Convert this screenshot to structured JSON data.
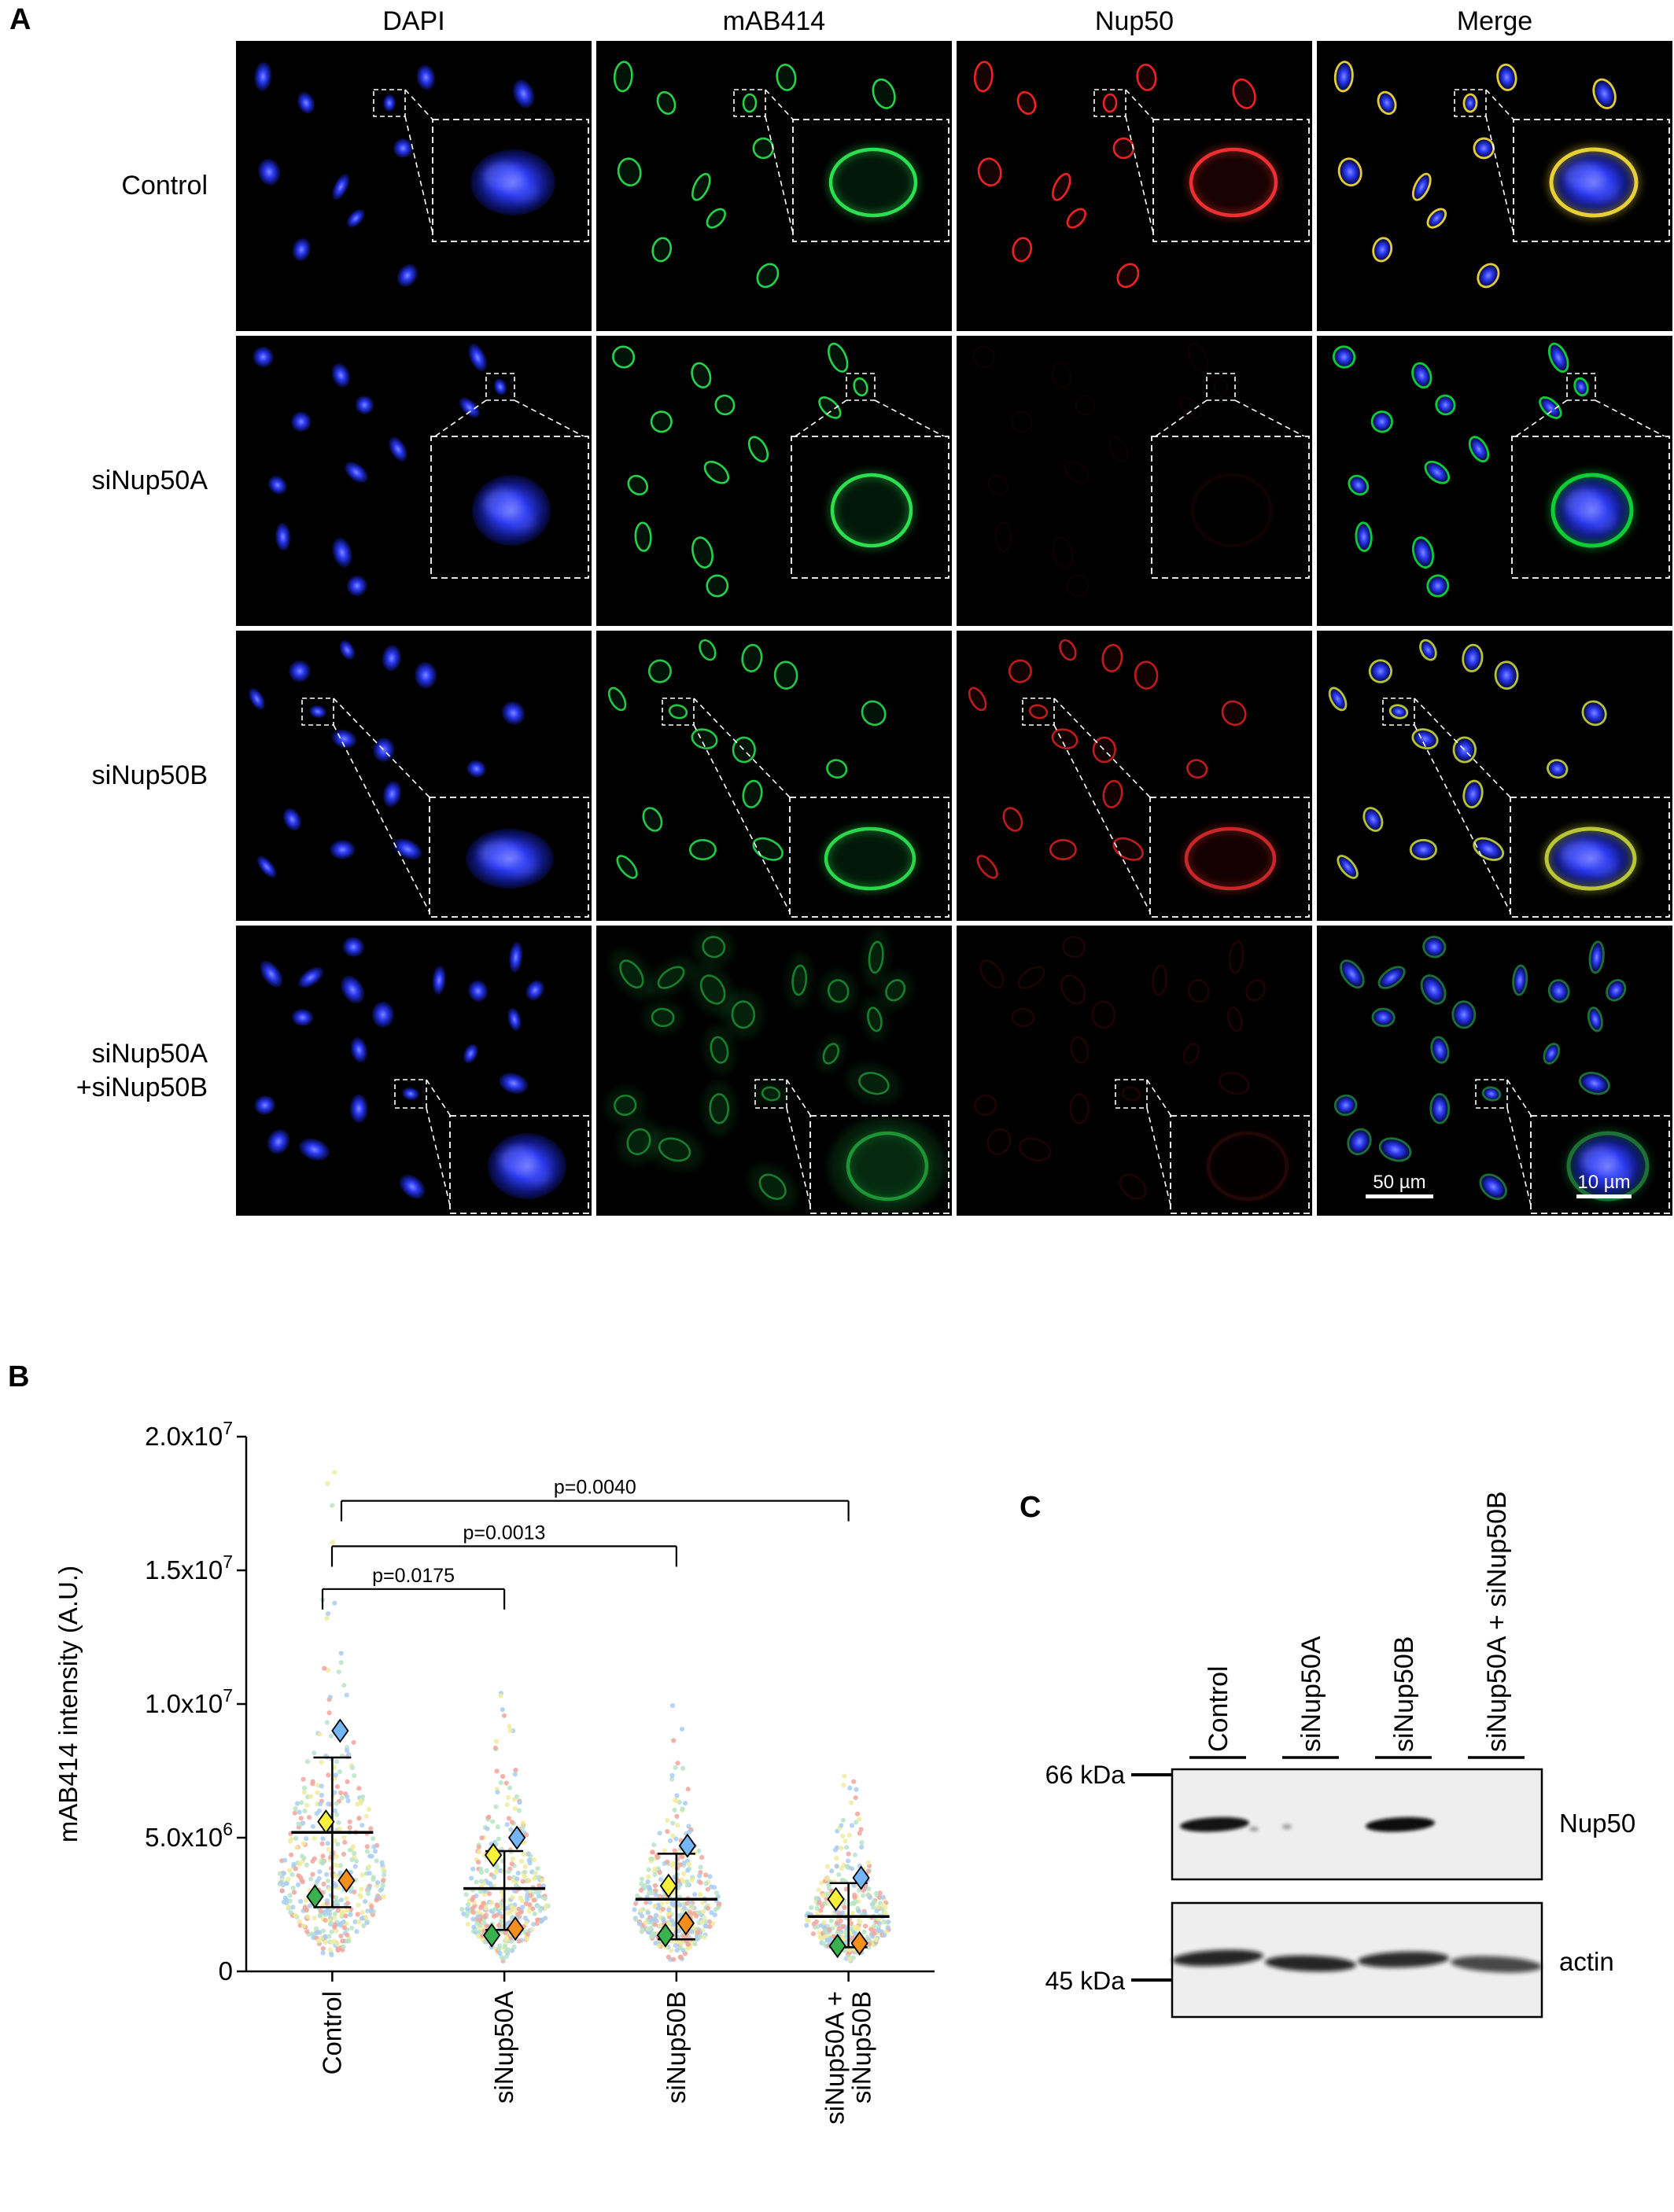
{
  "panel_a": {
    "label": "A",
    "column_headers": [
      "DAPI",
      "mAB414",
      "Nup50",
      "Merge"
    ],
    "row_labels_text": [
      "Control",
      "siNup50A",
      "siNup50B",
      "siNup50A\n+siNup50B"
    ],
    "scale_bar_labels": [
      "50 µm",
      "10 µm"
    ],
    "channels": [
      "dapi",
      "mab414",
      "nup50",
      "merge"
    ],
    "channel_colors": {
      "dapi": "#2c3af2",
      "mab414": "#25d34a",
      "nup50": "#ee2222"
    },
    "rows_render": [
      {
        "key": "control",
        "seed": 11,
        "cells": 11,
        "dapi": 1,
        "mab414": 1,
        "nup50": 1,
        "small_box": [
          175,
          62,
          40,
          34
        ],
        "large_box": [
          250,
          100,
          198,
          155
        ],
        "nucleus": [
          352,
          180,
          54,
          42
        ],
        "connectors": [
          [
            215,
            62,
            252,
            102
          ],
          [
            215,
            96,
            252,
            253
          ]
        ]
      },
      {
        "key": "sinup50a",
        "seed": 27,
        "cells": 13,
        "dapi": 1,
        "mab414": 1,
        "nup50": 0.05,
        "small_box": [
          318,
          48,
          36,
          34
        ],
        "large_box": [
          248,
          128,
          200,
          180
        ],
        "nucleus": [
          350,
          222,
          50,
          45
        ],
        "connectors": [
          [
            318,
            82,
            250,
            130
          ],
          [
            354,
            82,
            446,
            130
          ]
        ]
      },
      {
        "key": "sinup50b",
        "seed": 39,
        "cells": 15,
        "dapi": 1,
        "mab414": 0.95,
        "nup50": 0.8,
        "small_box": [
          84,
          86,
          40,
          34
        ],
        "large_box": [
          246,
          212,
          202,
          152
        ],
        "nucleus": [
          348,
          290,
          56,
          38
        ],
        "connectors": [
          [
            124,
            86,
            248,
            214
          ],
          [
            124,
            120,
            248,
            362
          ]
        ]
      },
      {
        "key": "sinup50ab",
        "seed": 53,
        "cells": 20,
        "dapi": 1,
        "mab414": 0.55,
        "nup50": 0.12,
        "small_box": [
          202,
          196,
          40,
          36
        ],
        "large_box": [
          272,
          242,
          176,
          124
        ],
        "nucleus": [
          370,
          306,
          50,
          42
        ],
        "connectors": [
          [
            242,
            196,
            274,
            244
          ],
          [
            242,
            232,
            274,
            364
          ]
        ],
        "scalebars": true
      }
    ]
  },
  "panel_b": {
    "label": "B"
  },
  "chart_data": {
    "type": "scatter",
    "title": "",
    "xlabel": "",
    "ylabel": "mAB414 intensity (A.U.)",
    "ylim": [
      0,
      20000000
    ],
    "grid": false,
    "yticks": [
      {
        "value": 0,
        "coef": "0",
        "exp": ""
      },
      {
        "value": 5000000,
        "coef": "5.0x10",
        "exp": "6"
      },
      {
        "value": 10000000,
        "coef": "1.0x10",
        "exp": "7"
      },
      {
        "value": 15000000,
        "coef": "1.5x10",
        "exp": "7"
      },
      {
        "value": 20000000,
        "coef": "2.0x10",
        "exp": "7"
      }
    ],
    "categories": [
      "Control",
      "siNup50A",
      "siNup50B",
      "siNup50A + siNup50B"
    ],
    "category_label_lines": [
      [
        "Control"
      ],
      [
        "siNup50A"
      ],
      [
        "siNup50B"
      ],
      [
        "siNup50A +",
        "siNup50B"
      ]
    ],
    "replicate_colors": {
      "blue": "#74b6f7",
      "yellow": "#f7f13c",
      "green": "#37b24d",
      "orange": "#f78f1e"
    },
    "point_colors": [
      "#f2a49c",
      "#a9cdf2",
      "#f0eb9e",
      "#b9e4c8"
    ],
    "groups": [
      {
        "category": "Control",
        "mean": 5200000,
        "sd_low": 2400000,
        "sd_high": 8000000,
        "replicates": [
          {
            "color": "green",
            "value": 2800000,
            "dx": -22
          },
          {
            "color": "yellow",
            "value": 5600000,
            "dx": -8
          },
          {
            "color": "orange",
            "value": 3400000,
            "dx": 18
          },
          {
            "color": "blue",
            "value": 9000000,
            "dx": 10
          }
        ],
        "cloud": {
          "n": 450,
          "median": 3400000,
          "sigma": 0.62,
          "max": 19200000,
          "halfwidth": 68
        }
      },
      {
        "category": "siNup50A",
        "mean": 3100000,
        "sd_low": 1550000,
        "sd_high": 4500000,
        "replicates": [
          {
            "color": "green",
            "value": 1350000,
            "dx": -16
          },
          {
            "color": "yellow",
            "value": 4350000,
            "dx": -14
          },
          {
            "color": "orange",
            "value": 1600000,
            "dx": 14
          },
          {
            "color": "blue",
            "value": 5000000,
            "dx": 16
          }
        ],
        "cloud": {
          "n": 420,
          "median": 2500000,
          "sigma": 0.55,
          "max": 11800000,
          "halfwidth": 56
        }
      },
      {
        "category": "siNup50B",
        "mean": 2700000,
        "sd_low": 1200000,
        "sd_high": 4400000,
        "replicates": [
          {
            "color": "green",
            "value": 1350000,
            "dx": -14
          },
          {
            "color": "yellow",
            "value": 3200000,
            "dx": -10
          },
          {
            "color": "orange",
            "value": 1800000,
            "dx": 12
          },
          {
            "color": "blue",
            "value": 4700000,
            "dx": 14
          }
        ],
        "cloud": {
          "n": 400,
          "median": 2300000,
          "sigma": 0.55,
          "max": 10500000,
          "halfwidth": 56
        }
      },
      {
        "category": "siNup50A + siNup50B",
        "mean": 2050000,
        "sd_low": 900000,
        "sd_high": 3300000,
        "replicates": [
          {
            "color": "green",
            "value": 950000,
            "dx": -14
          },
          {
            "color": "yellow",
            "value": 2700000,
            "dx": -16
          },
          {
            "color": "orange",
            "value": 1050000,
            "dx": 14
          },
          {
            "color": "blue",
            "value": 3500000,
            "dx": 16
          }
        ],
        "cloud": {
          "n": 380,
          "median": 1900000,
          "sigma": 0.55,
          "max": 8500000,
          "halfwidth": 54
        }
      }
    ],
    "comparisons": [
      {
        "from": 0,
        "to": 1,
        "label": "p=0.0175",
        "y": 14300000
      },
      {
        "from": 0,
        "to": 2,
        "label": "p=0.0013",
        "y": 15900000
      },
      {
        "from": 0,
        "to": 3,
        "label": "p=0.0040",
        "y": 17600000
      }
    ]
  },
  "panel_c": {
    "label": "C",
    "lane_labels": [
      "Control",
      "siNup50A",
      "siNup50B",
      "siNup50A + siNup50B"
    ],
    "markers": [
      {
        "label": "66 kDa"
      },
      {
        "label": "45 kDa"
      }
    ],
    "blots": [
      {
        "name": "Nup50",
        "band_intensities": [
          0.95,
          0.15,
          1.0,
          0.0
        ]
      },
      {
        "name": "actin",
        "band_intensities": [
          0.95,
          0.95,
          0.9,
          0.7
        ]
      }
    ]
  }
}
